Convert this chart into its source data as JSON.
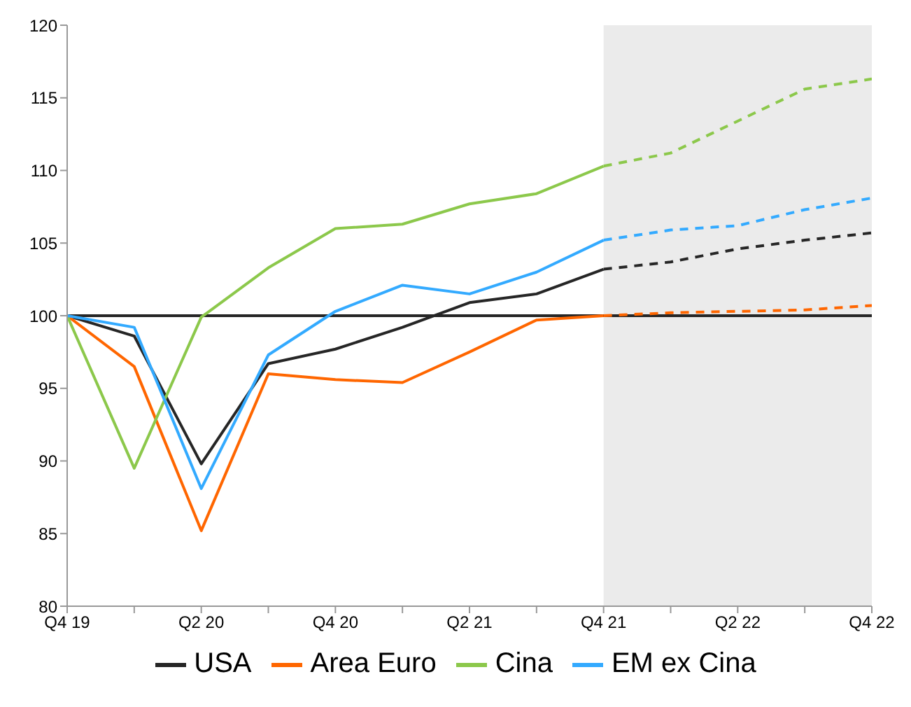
{
  "chart_data": {
    "type": "line",
    "categories": [
      "Q4 19",
      null,
      "Q2 20",
      null,
      "Q4 20",
      null,
      "Q2 21",
      null,
      "Q4 21",
      null,
      "Q2 22",
      null,
      "Q4 22"
    ],
    "series": [
      {
        "name": "USA",
        "color": "#262626",
        "values": [
          100,
          98.6,
          89.8,
          96.7,
          97.7,
          99.2,
          100.9,
          101.5,
          103.2,
          null,
          null,
          null,
          null
        ]
      },
      {
        "name": "Area Euro",
        "color": "#ff6600",
        "values": [
          100,
          96.5,
          85.2,
          96.0,
          95.6,
          95.4,
          97.5,
          99.7,
          100.0,
          null,
          null,
          null,
          null
        ]
      },
      {
        "name": "Cina",
        "color": "#8cc84b",
        "values": [
          100,
          89.5,
          99.9,
          103.3,
          106.0,
          106.3,
          107.7,
          108.4,
          110.3,
          null,
          null,
          null,
          null
        ]
      },
      {
        "name": "EM ex Cina",
        "color": "#33aaff",
        "values": [
          100,
          99.2,
          88.1,
          97.3,
          100.3,
          102.1,
          101.5,
          103.0,
          105.2,
          null,
          null,
          null,
          null
        ]
      },
      {
        "color": "#262626",
        "line_style": "dashed",
        "values": [
          null,
          null,
          null,
          null,
          null,
          null,
          null,
          null,
          103.2,
          103.7,
          104.6,
          105.2,
          105.7
        ]
      },
      {
        "color": "#ff6600",
        "line_style": "dashed",
        "values": [
          null,
          null,
          null,
          null,
          null,
          null,
          null,
          null,
          100.0,
          100.2,
          100.3,
          100.4,
          100.7
        ]
      },
      {
        "color": "#8cc84b",
        "line_style": "dashed",
        "values": [
          null,
          null,
          null,
          null,
          null,
          null,
          null,
          null,
          110.3,
          111.2,
          113.4,
          115.6,
          116.3
        ]
      },
      {
        "color": "#33aaff",
        "line_style": "dashed",
        "values": [
          null,
          null,
          null,
          null,
          null,
          null,
          null,
          null,
          105.2,
          105.9,
          106.2,
          107.3,
          108.1
        ]
      }
    ],
    "ylim": [
      80,
      120
    ],
    "yticks": [
      80,
      85,
      90,
      95,
      100,
      105,
      110,
      115,
      120
    ],
    "ref_lines": [
      {
        "axis": "y",
        "value": 100,
        "color": "#262626"
      }
    ],
    "bands": [
      {
        "axis": "x",
        "from": "Q4 21",
        "to": "Q4 22",
        "color": "#ebebeb"
      }
    ],
    "grid": false,
    "legend": "bottom",
    "marker": "none",
    "line_style": "solid"
  }
}
